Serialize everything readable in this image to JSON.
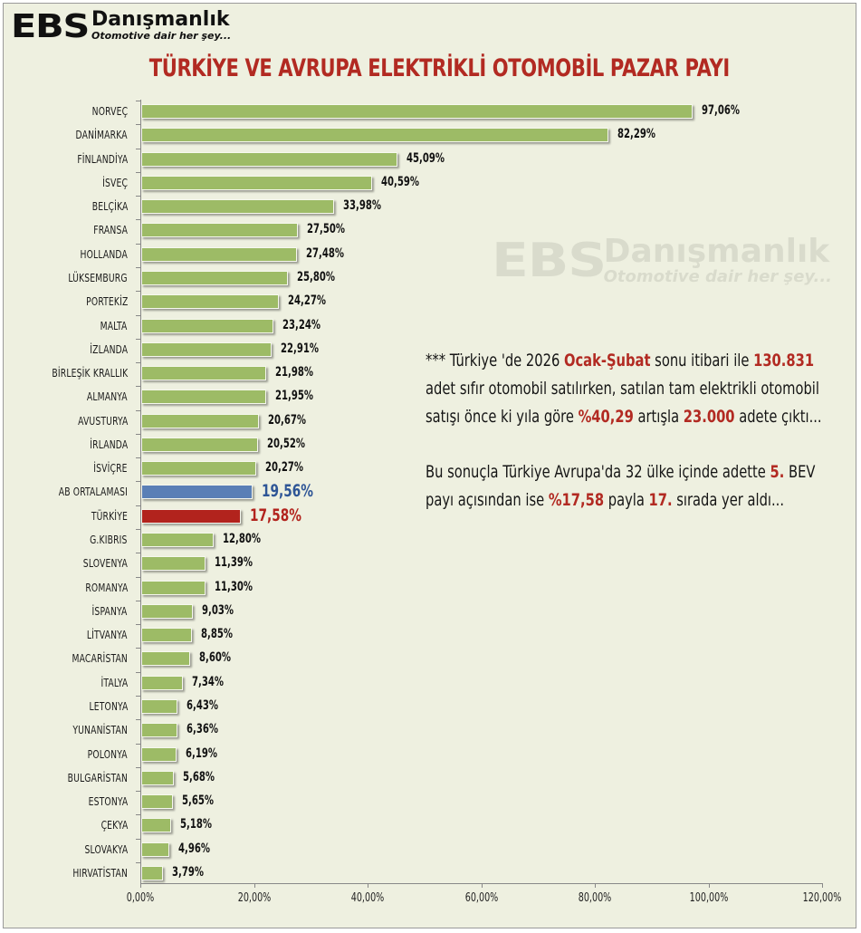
{
  "logo": {
    "brand": "EBS",
    "name": "Danışmanlık",
    "tagline": "Otomotive dair her şey..."
  },
  "colors": {
    "background": "#eef0e0",
    "bar_default": "#9dbb66",
    "bar_eu_average": "#5a7fb6",
    "bar_turkey": "#b2231d",
    "title": "#b22a22",
    "highlight": "#b22a22",
    "eu_label": "#2e5596"
  },
  "chart_data": {
    "type": "bar",
    "orientation": "horizontal",
    "title": "TÜRKİYE VE AVRUPA ELEKTRİKLİ OTOMOBİL PAZAR PAYI",
    "xlabel": "",
    "ylabel": "",
    "xlim": [
      0,
      120
    ],
    "x_ticks": [
      "0,00%",
      "20,00%",
      "40,00%",
      "60,00%",
      "80,00%",
      "100,00%",
      "120,00%"
    ],
    "grid": false,
    "legend": "none",
    "categories": [
      "NORVEÇ",
      "DANİMARKA",
      "FİNLANDİYA",
      "İSVEÇ",
      "BELÇİKA",
      "FRANSA",
      "HOLLANDA",
      "LÜKSEMBURG",
      "PORTEKİZ",
      "MALTA",
      "İZLANDA",
      "BİRLEŞİK KRALLIK",
      "ALMANYA",
      "AVUSTURYA",
      "İRLANDA",
      "İSVİÇRE",
      "AB ORTALAMASI",
      "TÜRKİYE",
      "G.KIBRIS",
      "SLOVENYA",
      "ROMANYA",
      "İSPANYA",
      "LİTVANYA",
      "MACARİSTAN",
      "İTALYA",
      "LETONYA",
      "YUNANİSTAN",
      "POLONYA",
      "BULGARİSTAN",
      "ESTONYA",
      "ÇEKYA",
      "SLOVAKYA",
      "HIRVATİSTAN"
    ],
    "values": [
      97.06,
      82.29,
      45.09,
      40.59,
      33.98,
      27.5,
      27.48,
      25.8,
      24.27,
      23.24,
      22.91,
      21.98,
      21.95,
      20.67,
      20.52,
      20.27,
      19.56,
      17.58,
      12.8,
      11.39,
      11.3,
      9.03,
      8.85,
      8.6,
      7.34,
      6.43,
      6.36,
      6.19,
      5.68,
      5.65,
      5.18,
      4.96,
      3.79
    ],
    "value_labels": [
      "97,06%",
      "82,29%",
      "45,09%",
      "40,59%",
      "33,98%",
      "27,50%",
      "27,48%",
      "25,80%",
      "24,27%",
      "23,24%",
      "22,91%",
      "21,98%",
      "21,95%",
      "20,67%",
      "20,52%",
      "20,27%",
      "19,56%",
      "17,58%",
      "12,80%",
      "11,39%",
      "11,30%",
      "9,03%",
      "8,85%",
      "8,60%",
      "7,34%",
      "6,43%",
      "6,36%",
      "6,19%",
      "5,68%",
      "5,65%",
      "5,18%",
      "4,96%",
      "3,79%"
    ],
    "highlighted": {
      "AB ORTALAMASI": "eu_average",
      "TÜRKİYE": "turkey"
    }
  },
  "note": {
    "p1": [
      {
        "t": "*** Türkiye 'de 2026 ",
        "h": false
      },
      {
        "t": "Ocak-Şubat",
        "h": true
      },
      {
        "t": " sonu itibari ile ",
        "h": false
      },
      {
        "t": "130.831",
        "h": true
      },
      {
        "t": " adet sıfır otomobil satılırken, satılan tam elektrikli otomobil satışı önce ki yıla göre ",
        "h": false
      },
      {
        "t": "%40,29",
        "h": true
      },
      {
        "t": " artışla ",
        "h": false
      },
      {
        "t": "23.000",
        "h": true
      },
      {
        "t": " adete çıktı...",
        "h": false
      }
    ],
    "p2": [
      {
        "t": "Bu sonuçla Türkiye Avrupa'da 32 ülke içinde adette ",
        "h": false
      },
      {
        "t": "5.",
        "h": true
      },
      {
        "t": " BEV payı açısından ise ",
        "h": false
      },
      {
        "t": "%17,58",
        "h": true
      },
      {
        "t": " payla ",
        "h": false
      },
      {
        "t": "17.",
        "h": true
      },
      {
        "t": " sırada yer aldı...",
        "h": false
      }
    ]
  }
}
